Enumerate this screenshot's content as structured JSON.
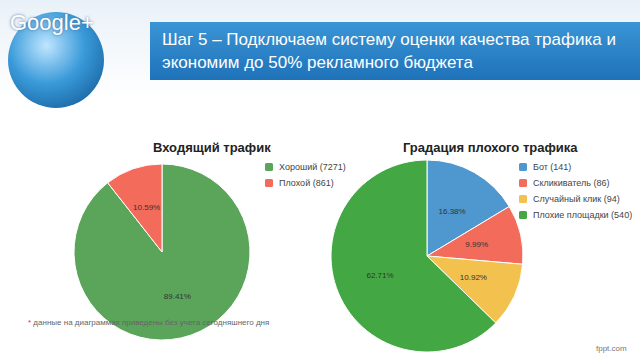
{
  "slide": {
    "logo": "Google+",
    "title": "Шаг 5 – Подключаем систему оценки качества трафика и экономим до 50% рекламного бюджета",
    "footnote": "* данные на диаграммах приведены без учета сегодняшнего дня",
    "watermark": "fppt.com"
  },
  "chart_data": [
    {
      "type": "pie",
      "title": "Входящий трафик",
      "categories": [
        "Хороший (7271)",
        "Плохой (861)"
      ],
      "values": [
        89.41,
        10.59
      ],
      "value_labels": [
        "89.41%",
        "10.59%"
      ],
      "colors": [
        "#5aa55a",
        "#f36b5b"
      ],
      "legend": "upper right",
      "data_labels": true
    },
    {
      "type": "pie",
      "title": "Градация плохого трафика",
      "categories": [
        "Бот (141)",
        "Скликиватель (86)",
        "Случайный клик (94)",
        "Плохие площадки (540)"
      ],
      "values": [
        16.38,
        9.99,
        10.92,
        62.71
      ],
      "value_labels": [
        "16.38%",
        "9.99%",
        "10.92%",
        "62.71%"
      ],
      "colors": [
        "#4f97cf",
        "#f36b5b",
        "#f2c14e",
        "#43a843"
      ],
      "legend": "upper right",
      "data_labels": true
    }
  ]
}
